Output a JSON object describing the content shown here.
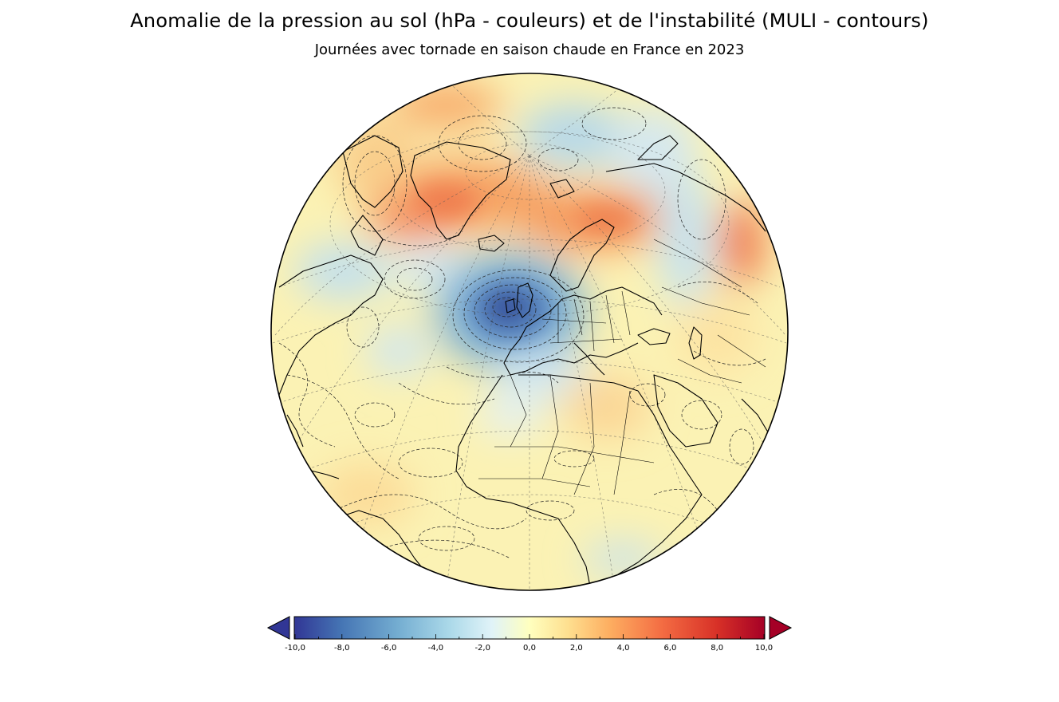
{
  "title": "Anomalie de la pression au sol (hPa - couleurs) et de l'instabilité (MULI - contours)",
  "subtitle": "Journées avec tornade en saison chaude en France en 2023",
  "colorbar": {
    "min": -10,
    "max": 10,
    "extend": "both",
    "colors": [
      "#313695",
      "#4575b4",
      "#74add1",
      "#abd9e9",
      "#e0f3f8",
      "#ffffbf",
      "#fee090",
      "#fdae61",
      "#f46d43",
      "#d73027",
      "#a50026"
    ],
    "tick_labels": [
      "-10,0",
      "-8,0",
      "-6,0",
      "-4,0",
      "-2,0",
      "0,0",
      "2,0",
      "4,0",
      "6,0",
      "8,0",
      "10,0"
    ]
  }
}
